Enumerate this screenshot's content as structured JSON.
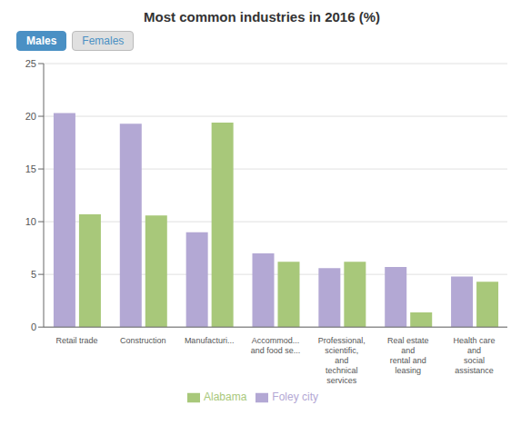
{
  "chart_data": {
    "type": "bar",
    "title": "Most common industries in 2016 (%)",
    "annotations": [
      "Males",
      "Females"
    ],
    "categories": [
      "Retail trade",
      "Construction",
      "Manufacturi...",
      "Accommod...\nand food se...",
      "Professional,\nscientific,\nand\ntechnical\nservices",
      "Real estate\nand\nrental and\nleasing",
      "Health care\nand\nsocial\nassistance"
    ],
    "series": [
      {
        "name": "Foley city",
        "color": "#b3a8d4",
        "values": [
          20.3,
          19.3,
          9.0,
          7.0,
          5.6,
          5.7,
          4.8
        ]
      },
      {
        "name": "Alabama",
        "color": "#a8c87a",
        "values": [
          10.7,
          10.6,
          19.4,
          6.2,
          6.2,
          1.4,
          4.3
        ]
      }
    ],
    "ylim": [
      0,
      25
    ],
    "yticks": [
      0,
      5,
      10,
      15,
      20,
      25
    ],
    "grid": true,
    "legend": "bottom"
  }
}
